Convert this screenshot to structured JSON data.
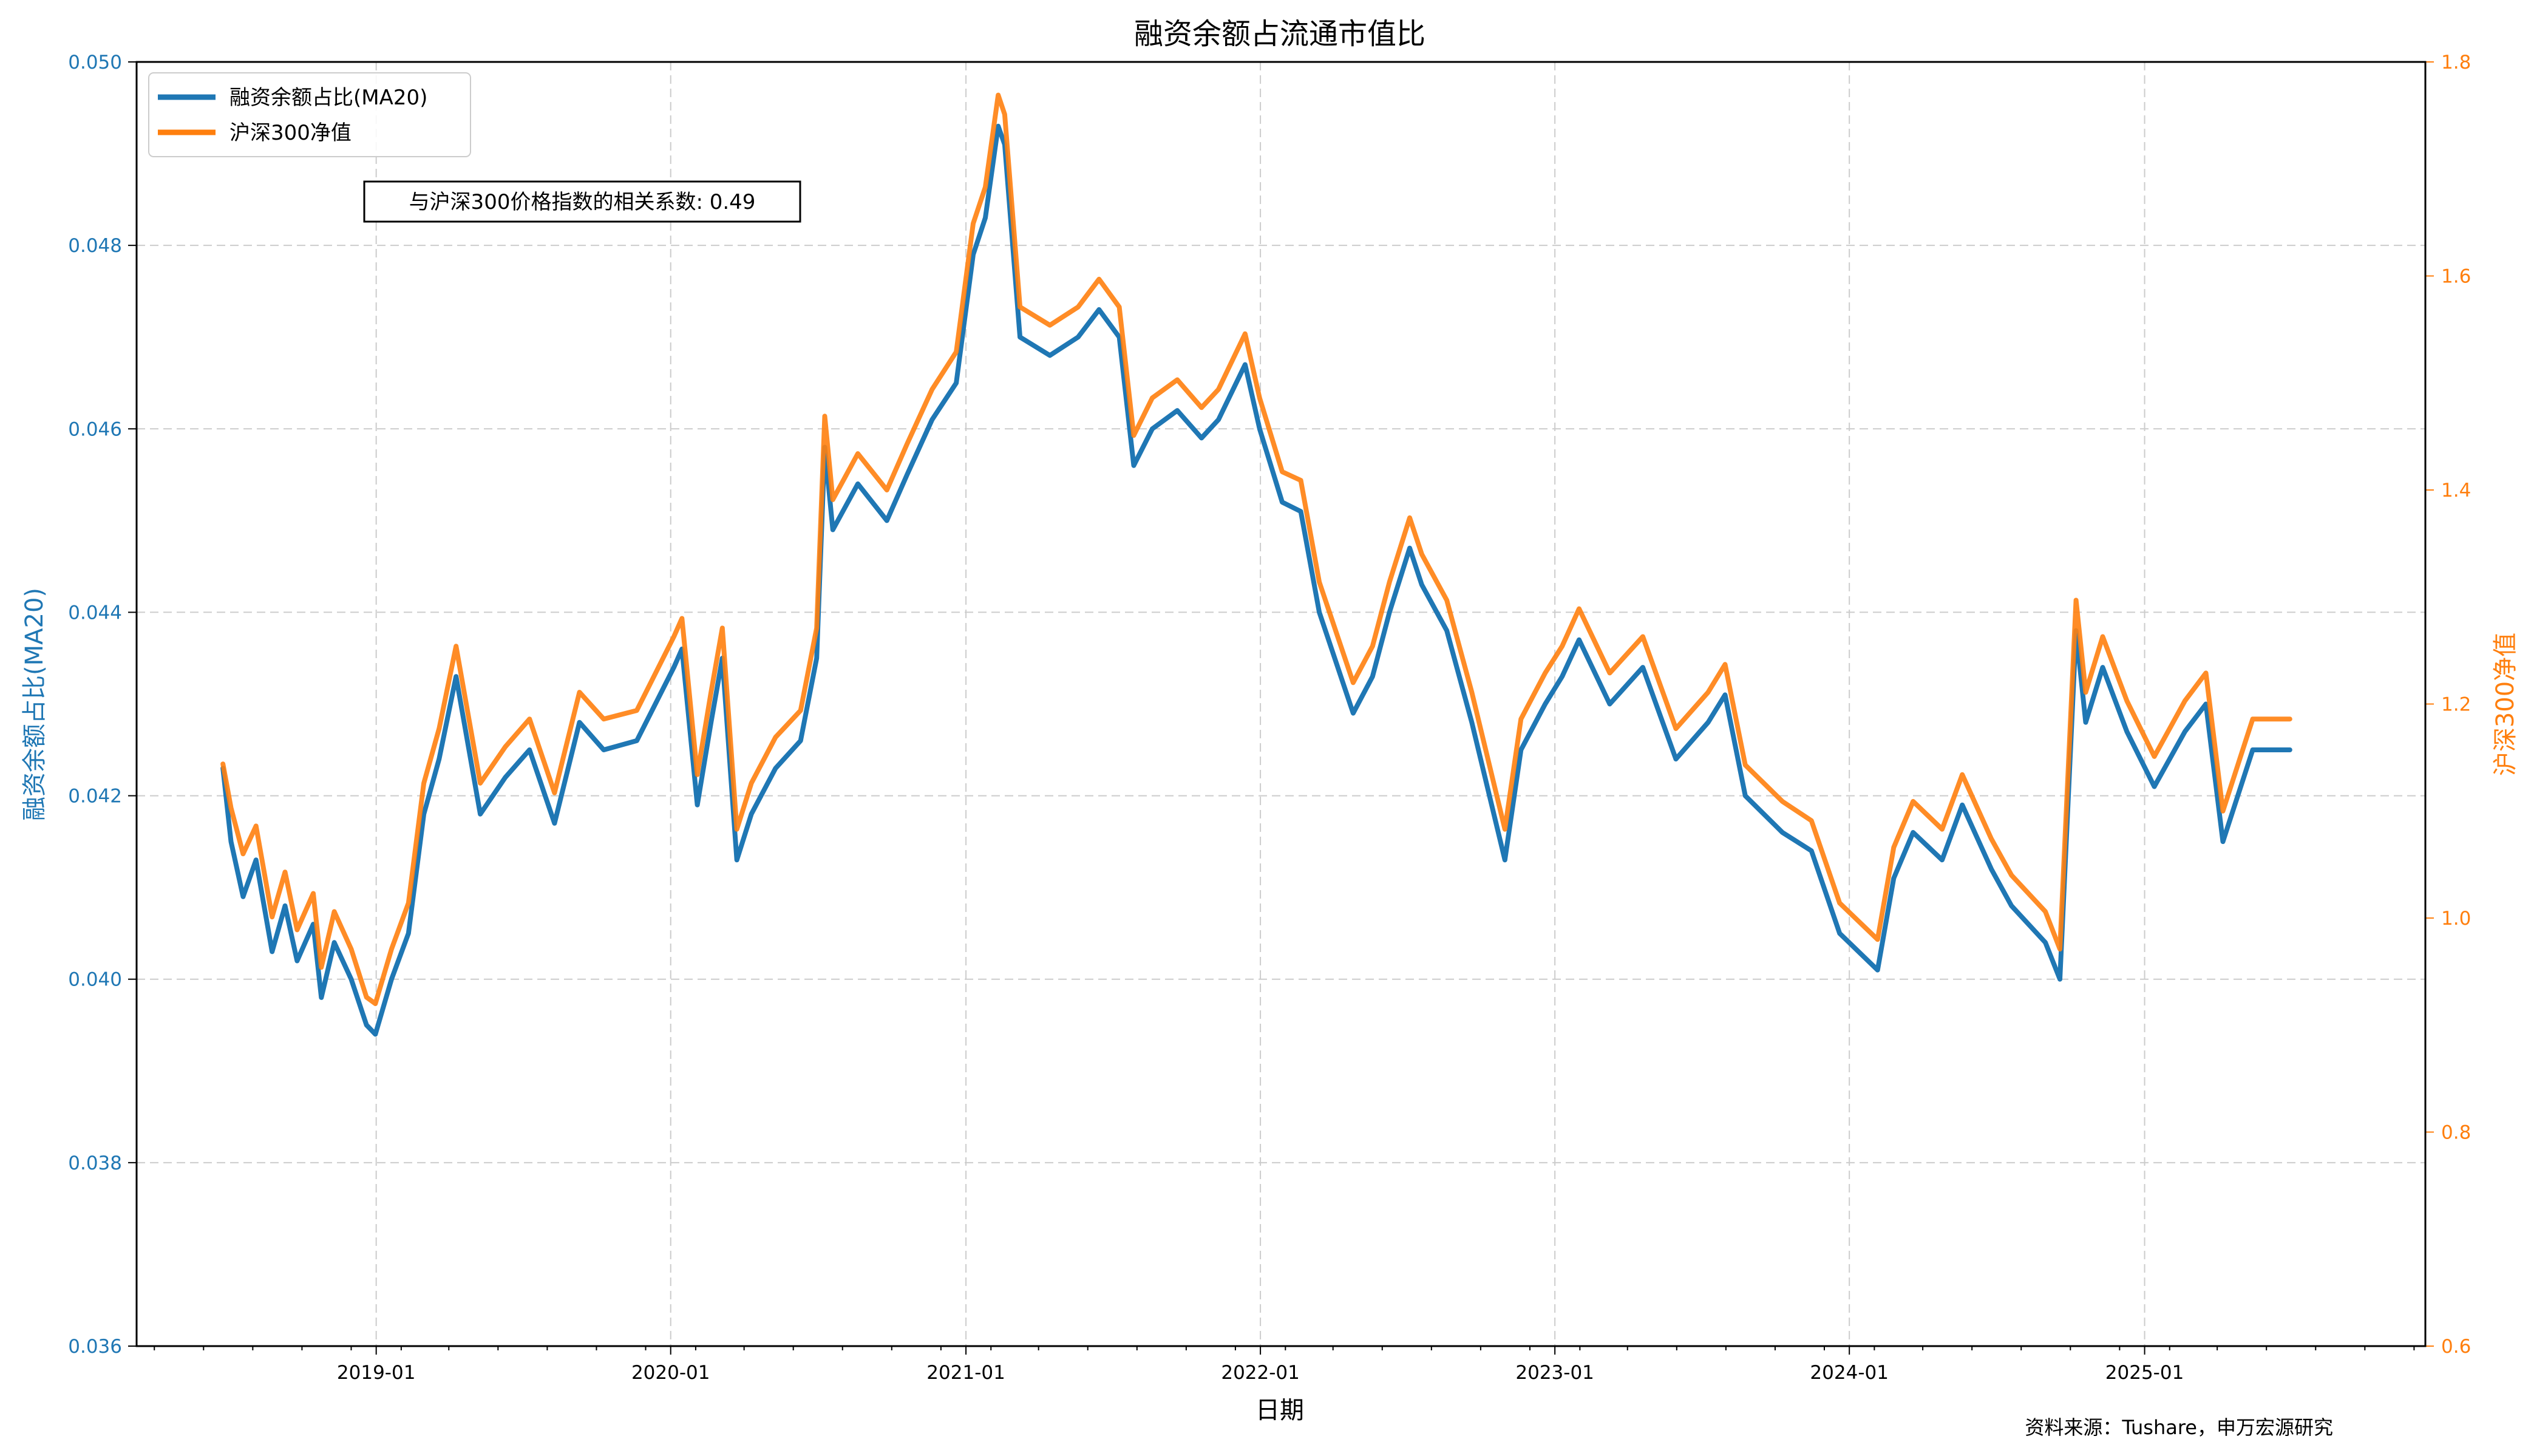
{
  "chart_data": {
    "type": "line",
    "title": "融资余额占流通市值比",
    "xlabel": "日期",
    "ylabel_left": "融资余额占比(MA20)",
    "ylabel_right": "沪深300净值",
    "x_ticks": [
      "2019-01",
      "2020-01",
      "2021-01",
      "2022-01",
      "2023-01",
      "2024-01",
      "2025-01"
    ],
    "y_left_ticks": [
      "0.036",
      "0.038",
      "0.040",
      "0.042",
      "0.044",
      "0.046",
      "0.048",
      "0.050"
    ],
    "y_right_ticks": [
      "0.6",
      "0.8",
      "1.0",
      "1.2",
      "1.4",
      "1.6",
      "1.8"
    ],
    "ylim_left": [
      0.036,
      0.05
    ],
    "ylim_right": [
      0.6,
      1.8
    ],
    "xlim": [
      "2018-03-10",
      "2025-12-15"
    ],
    "grid": true,
    "legend_position": "top-left",
    "legend": [
      "融资余额占比(MA20)",
      "沪深300净值"
    ],
    "annotation": "与沪深300价格指数的相关系数: 0.49",
    "source": "资料来源：Tushare，申万宏源研究",
    "colors": {
      "left_series": "#1f77b4",
      "right_series": "#ff7f0e",
      "grid": "#cccccc"
    },
    "series": [
      {
        "name": "融资余额占比(MA20)",
        "axis": "left",
        "values": [
          [
            "2018-06-25",
            0.0423
          ],
          [
            "2018-07-05",
            0.0415
          ],
          [
            "2018-07-20",
            0.0409
          ],
          [
            "2018-08-05",
            0.0413
          ],
          [
            "2018-08-25",
            0.0403
          ],
          [
            "2018-09-10",
            0.0408
          ],
          [
            "2018-09-25",
            0.0402
          ],
          [
            "2018-10-15",
            0.0406
          ],
          [
            "2018-10-25",
            0.0398
          ],
          [
            "2018-11-10",
            0.0404
          ],
          [
            "2018-12-01",
            0.04
          ],
          [
            "2018-12-20",
            0.0395
          ],
          [
            "2018-12-31",
            0.0394
          ],
          [
            "2019-01-20",
            0.04
          ],
          [
            "2019-02-10",
            0.0405
          ],
          [
            "2019-03-01",
            0.0418
          ],
          [
            "2019-03-20",
            0.0424
          ],
          [
            "2019-04-10",
            0.0433
          ],
          [
            "2019-05-10",
            0.0418
          ],
          [
            "2019-06-10",
            0.0422
          ],
          [
            "2019-07-10",
            0.0425
          ],
          [
            "2019-08-10",
            0.0417
          ],
          [
            "2019-09-10",
            0.0428
          ],
          [
            "2019-10-10",
            0.0425
          ],
          [
            "2019-11-20",
            0.0426
          ],
          [
            "2020-01-05",
            0.0434
          ],
          [
            "2020-01-15",
            0.0436
          ],
          [
            "2020-02-03",
            0.0419
          ],
          [
            "2020-02-20",
            0.0428
          ],
          [
            "2020-03-05",
            0.0435
          ],
          [
            "2020-03-23",
            0.0413
          ],
          [
            "2020-04-10",
            0.0418
          ],
          [
            "2020-05-10",
            0.0423
          ],
          [
            "2020-06-10",
            0.0426
          ],
          [
            "2020-06-30",
            0.0435
          ],
          [
            "2020-07-10",
            0.0458
          ],
          [
            "2020-07-20",
            0.0449
          ],
          [
            "2020-08-20",
            0.0454
          ],
          [
            "2020-09-25",
            0.045
          ],
          [
            "2020-10-20",
            0.0455
          ],
          [
            "2020-11-20",
            0.0461
          ],
          [
            "2020-12-20",
            0.0465
          ],
          [
            "2021-01-10",
            0.0479
          ],
          [
            "2021-01-25",
            0.0483
          ],
          [
            "2021-02-10",
            0.0493
          ],
          [
            "2021-02-18",
            0.0491
          ],
          [
            "2021-03-09",
            0.047
          ],
          [
            "2021-04-15",
            0.0468
          ],
          [
            "2021-05-20",
            0.047
          ],
          [
            "2021-06-15",
            0.0473
          ],
          [
            "2021-07-10",
            0.047
          ],
          [
            "2021-07-28",
            0.0456
          ],
          [
            "2021-08-20",
            0.046
          ],
          [
            "2021-09-20",
            0.0462
          ],
          [
            "2021-10-20",
            0.0459
          ],
          [
            "2021-11-10",
            0.0461
          ],
          [
            "2021-12-13",
            0.0467
          ],
          [
            "2021-12-31",
            0.046
          ],
          [
            "2022-01-28",
            0.0452
          ],
          [
            "2022-02-20",
            0.0451
          ],
          [
            "2022-03-15",
            0.044
          ],
          [
            "2022-04-26",
            0.0429
          ],
          [
            "2022-05-20",
            0.0433
          ],
          [
            "2022-06-10",
            0.044
          ],
          [
            "2022-07-05",
            0.0447
          ],
          [
            "2022-07-20",
            0.0443
          ],
          [
            "2022-08-20",
            0.0438
          ],
          [
            "2022-09-20",
            0.0428
          ],
          [
            "2022-10-31",
            0.0413
          ],
          [
            "2022-11-20",
            0.0425
          ],
          [
            "2022-12-20",
            0.043
          ],
          [
            "2023-01-10",
            0.0433
          ],
          [
            "2023-01-31",
            0.0437
          ],
          [
            "2023-03-10",
            0.043
          ],
          [
            "2023-04-20",
            0.0434
          ],
          [
            "2023-05-31",
            0.0424
          ],
          [
            "2023-07-10",
            0.0428
          ],
          [
            "2023-07-31",
            0.0431
          ],
          [
            "2023-08-25",
            0.042
          ],
          [
            "2023-10-10",
            0.0416
          ],
          [
            "2023-11-15",
            0.0414
          ],
          [
            "2023-12-20",
            0.0405
          ],
          [
            "2024-02-05",
            0.0401
          ],
          [
            "2024-02-25",
            0.0411
          ],
          [
            "2024-03-20",
            0.0416
          ],
          [
            "2024-04-25",
            0.0413
          ],
          [
            "2024-05-20",
            0.0419
          ],
          [
            "2024-06-25",
            0.0412
          ],
          [
            "2024-07-20",
            0.0408
          ],
          [
            "2024-08-31",
            0.0404
          ],
          [
            "2024-09-18",
            0.04
          ],
          [
            "2024-10-08",
            0.0438
          ],
          [
            "2024-10-20",
            0.0428
          ],
          [
            "2024-11-10",
            0.0434
          ],
          [
            "2024-12-10",
            0.0427
          ],
          [
            "2025-01-13",
            0.0421
          ],
          [
            "2025-02-20",
            0.0427
          ],
          [
            "2025-03-18",
            0.043
          ],
          [
            "2025-04-08",
            0.0415
          ],
          [
            "2025-05-15",
            0.0425
          ],
          [
            "2025-06-30",
            0.0425
          ]
        ]
      },
      {
        "name": "沪深300净值",
        "axis": "right",
        "values": [
          [
            "2018-06-25",
            1.144
          ],
          [
            "2018-07-05",
            1.103
          ],
          [
            "2018-07-20",
            1.06
          ],
          [
            "2018-08-05",
            1.086
          ],
          [
            "2018-08-25",
            1.001
          ],
          [
            "2018-09-10",
            1.043
          ],
          [
            "2018-09-25",
            0.989
          ],
          [
            "2018-10-15",
            1.023
          ],
          [
            "2018-10-25",
            0.954
          ],
          [
            "2018-11-10",
            1.006
          ],
          [
            "2018-12-01",
            0.971
          ],
          [
            "2018-12-20",
            0.926
          ],
          [
            "2018-12-31",
            0.92
          ],
          [
            "2019-01-20",
            0.971
          ],
          [
            "2019-02-10",
            1.014
          ],
          [
            "2019-03-01",
            1.126
          ],
          [
            "2019-03-20",
            1.177
          ],
          [
            "2019-04-10",
            1.254
          ],
          [
            "2019-05-10",
            1.126
          ],
          [
            "2019-06-10",
            1.16
          ],
          [
            "2019-07-10",
            1.186
          ],
          [
            "2019-08-10",
            1.117
          ],
          [
            "2019-09-10",
            1.211
          ],
          [
            "2019-10-10",
            1.186
          ],
          [
            "2019-11-20",
            1.194
          ],
          [
            "2020-01-05",
            1.263
          ],
          [
            "2020-01-15",
            1.28
          ],
          [
            "2020-02-03",
            1.134
          ],
          [
            "2020-02-20",
            1.211
          ],
          [
            "2020-03-05",
            1.271
          ],
          [
            "2020-03-23",
            1.083
          ],
          [
            "2020-04-10",
            1.126
          ],
          [
            "2020-05-10",
            1.169
          ],
          [
            "2020-06-10",
            1.194
          ],
          [
            "2020-06-30",
            1.271
          ],
          [
            "2020-07-10",
            1.469
          ],
          [
            "2020-07-20",
            1.391
          ],
          [
            "2020-08-20",
            1.434
          ],
          [
            "2020-09-25",
            1.4
          ],
          [
            "2020-10-20",
            1.443
          ],
          [
            "2020-11-20",
            1.494
          ],
          [
            "2020-12-20",
            1.529
          ],
          [
            "2021-01-10",
            1.649
          ],
          [
            "2021-01-25",
            1.683
          ],
          [
            "2021-02-10",
            1.769
          ],
          [
            "2021-02-18",
            1.751
          ],
          [
            "2021-03-09",
            1.571
          ],
          [
            "2021-04-15",
            1.554
          ],
          [
            "2021-05-20",
            1.571
          ],
          [
            "2021-06-15",
            1.597
          ],
          [
            "2021-07-10",
            1.571
          ],
          [
            "2021-07-28",
            1.451
          ],
          [
            "2021-08-20",
            1.486
          ],
          [
            "2021-09-20",
            1.503
          ],
          [
            "2021-10-20",
            1.477
          ],
          [
            "2021-11-10",
            1.494
          ],
          [
            "2021-12-13",
            1.546
          ],
          [
            "2021-12-31",
            1.486
          ],
          [
            "2022-01-28",
            1.417
          ],
          [
            "2022-02-20",
            1.409
          ],
          [
            "2022-03-15",
            1.314
          ],
          [
            "2022-04-26",
            1.22
          ],
          [
            "2022-05-20",
            1.254
          ],
          [
            "2022-06-10",
            1.314
          ],
          [
            "2022-07-05",
            1.374
          ],
          [
            "2022-07-20",
            1.34
          ],
          [
            "2022-08-20",
            1.297
          ],
          [
            "2022-09-20",
            1.211
          ],
          [
            "2022-10-31",
            1.083
          ],
          [
            "2022-11-20",
            1.186
          ],
          [
            "2022-12-20",
            1.229
          ],
          [
            "2023-01-10",
            1.254
          ],
          [
            "2023-01-31",
            1.289
          ],
          [
            "2023-03-10",
            1.229
          ],
          [
            "2023-04-20",
            1.263
          ],
          [
            "2023-05-31",
            1.177
          ],
          [
            "2023-07-10",
            1.211
          ],
          [
            "2023-07-31",
            1.237
          ],
          [
            "2023-08-25",
            1.143
          ],
          [
            "2023-10-10",
            1.109
          ],
          [
            "2023-11-15",
            1.091
          ],
          [
            "2023-12-20",
            1.014
          ],
          [
            "2024-02-05",
            0.98
          ],
          [
            "2024-02-25",
            1.066
          ],
          [
            "2024-03-20",
            1.109
          ],
          [
            "2024-04-25",
            1.083
          ],
          [
            "2024-05-20",
            1.134
          ],
          [
            "2024-06-25",
            1.074
          ],
          [
            "2024-07-20",
            1.04
          ],
          [
            "2024-08-31",
            1.006
          ],
          [
            "2024-09-18",
            0.971
          ],
          [
            "2024-10-08",
            1.297
          ],
          [
            "2024-10-20",
            1.211
          ],
          [
            "2024-11-10",
            1.263
          ],
          [
            "2024-12-10",
            1.203
          ],
          [
            "2025-01-13",
            1.151
          ],
          [
            "2025-02-20",
            1.203
          ],
          [
            "2025-03-18",
            1.229
          ],
          [
            "2025-04-08",
            1.1
          ],
          [
            "2025-05-15",
            1.186
          ],
          [
            "2025-06-30",
            1.186
          ]
        ]
      }
    ]
  }
}
